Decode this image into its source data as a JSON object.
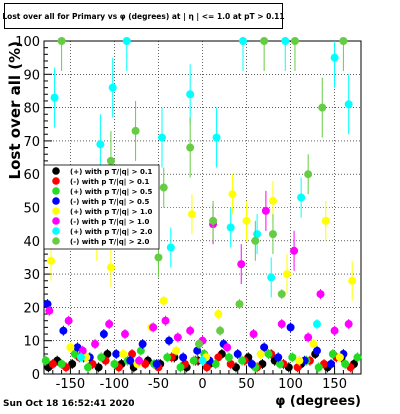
{
  "title": "Lost over all for Primary vs φ (degrees) at | η | <= 1.0 at pT > 0.11",
  "footer_timestamp": "Sun Oct 18 16:52:41 2020",
  "chart_data": {
    "type": "scatter",
    "xlabel": "φ (degrees)",
    "ylabel": "Lost over all (%)",
    "xlim": [
      -180,
      180
    ],
    "ylim": [
      0,
      100
    ],
    "x_ticks": [
      -150,
      -100,
      -50,
      0,
      50,
      100,
      150
    ],
    "y_ticks": [
      0,
      10,
      20,
      30,
      40,
      50,
      60,
      70,
      80,
      90,
      100
    ],
    "grid": true,
    "legend_position": "left-middle",
    "series": [
      {
        "name": "(+) with p T/|q| > 0.1",
        "color": "#000000",
        "x": [
          -175,
          -165,
          -148,
          -135,
          -118,
          -108,
          -92,
          -78,
          -62,
          -48,
          -32,
          -18,
          -5,
          8,
          22,
          38,
          52,
          68,
          82,
          98,
          112,
          128,
          142,
          158,
          172
        ],
        "y": [
          2,
          4,
          3,
          5,
          2,
          6,
          3,
          2,
          4,
          3,
          5,
          2,
          4,
          3,
          6,
          2,
          5,
          3,
          4,
          2,
          3,
          6,
          2,
          5,
          3
        ]
      },
      {
        "name": "(-) with p T/|q| > 0.1",
        "color": "#ff0000",
        "x": [
          -170,
          -155,
          -140,
          -125,
          -110,
          -95,
          -80,
          -65,
          -50,
          -35,
          -20,
          -8,
          5,
          18,
          32,
          48,
          62,
          78,
          92,
          108,
          122,
          138,
          152,
          168
        ],
        "y": [
          3,
          2,
          5,
          3,
          4,
          2,
          6,
          3,
          2,
          5,
          3,
          4,
          2,
          5,
          3,
          4,
          2,
          6,
          3,
          2,
          4,
          3,
          5,
          2
        ]
      },
      {
        "name": "(+) with p T/|q| > 0.5",
        "color": "#22dd22",
        "x": [
          -178,
          -160,
          -145,
          -130,
          -115,
          -100,
          -85,
          -70,
          -55,
          -40,
          -25,
          -10,
          2,
          15,
          30,
          45,
          60,
          75,
          88,
          102,
          118,
          132,
          148,
          162,
          176
        ],
        "y": [
          4,
          3,
          6,
          2,
          5,
          3,
          4,
          7,
          3,
          5,
          2,
          4,
          6,
          3,
          5,
          4,
          2,
          6,
          3,
          5,
          4,
          2,
          6,
          3,
          5
        ]
      },
      {
        "name": "(-) with p T/|q| > 0.5",
        "color": "#0000ff",
        "x": [
          -176,
          -158,
          -142,
          -128,
          -112,
          -98,
          -82,
          -68,
          -52,
          -38,
          -22,
          -6,
          8,
          24,
          40,
          56,
          70,
          86,
          100,
          116,
          130,
          146,
          160
        ],
        "y": [
          21,
          13,
          8,
          5,
          12,
          6,
          4,
          9,
          3,
          10,
          5,
          7,
          4,
          9,
          6,
          3,
          8,
          5,
          14,
          4,
          7,
          3,
          6
        ]
      },
      {
        "name": "(+) with p T/|q| > 1.0",
        "color": "#ffff00",
        "x": [
          -172,
          -150,
          -132,
          -120,
          -104,
          -90,
          -74,
          -58,
          -44,
          -30,
          -12,
          4,
          18,
          34,
          50,
          66,
          80,
          96,
          110,
          126,
          140,
          156,
          170
        ],
        "y": [
          34,
          8,
          5,
          40,
          32,
          6,
          3,
          14,
          22,
          7,
          48,
          5,
          18,
          54,
          46,
          6,
          52,
          30,
          4,
          9,
          46,
          5,
          28
        ]
      },
      {
        "name": "(-) with p T/|q| > 1.0",
        "color": "#ff00ff",
        "x": [
          -174,
          -152,
          -136,
          -122,
          -106,
          -88,
          -72,
          -56,
          -42,
          -28,
          -14,
          0,
          12,
          28,
          44,
          58,
          72,
          90,
          104,
          120,
          134,
          150,
          166
        ],
        "y": [
          19,
          16,
          7,
          9,
          15,
          12,
          4,
          14,
          16,
          11,
          13,
          10,
          45,
          8,
          33,
          12,
          49,
          15,
          37,
          11,
          24,
          13,
          15
        ]
      },
      {
        "name": "(+) with p T/|q| > 2.0",
        "color": "#00ffff",
        "x": [
          -168,
          -138,
          -116,
          -102,
          -86,
          -64,
          -46,
          -36,
          -14,
          0,
          16,
          32,
          46,
          62,
          78,
          94,
          112,
          130,
          150,
          166
        ],
        "y": [
          83,
          5,
          69,
          86,
          100,
          52,
          71,
          38,
          84,
          4,
          71,
          44,
          100,
          42,
          29,
          100,
          53,
          15,
          95,
          81
        ]
      },
      {
        "name": "(-) with p T/|q| > 2.0",
        "color": "#66cc44",
        "x": [
          -160,
          -138,
          -104,
          -76,
          -50,
          -44,
          -14,
          -4,
          12,
          20,
          42,
          60,
          70,
          80,
          90,
          105,
          120,
          136,
          160
        ],
        "y": [
          100,
          48,
          64,
          73,
          35,
          56,
          68,
          9,
          46,
          13,
          21,
          40,
          100,
          42,
          24,
          100,
          60,
          80,
          100
        ]
      }
    ]
  }
}
